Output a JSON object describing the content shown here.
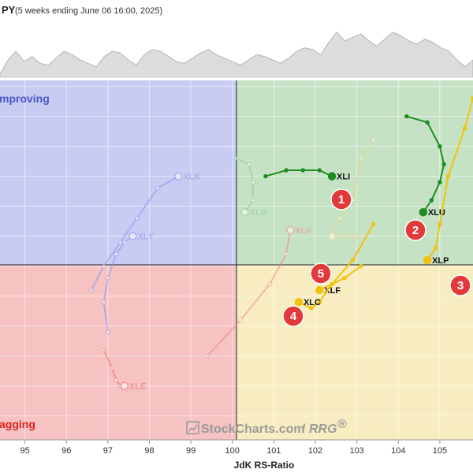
{
  "header": {
    "ticker": "PY",
    "subtitle": "(5 weeks ending June 06 16:00, 2025)"
  },
  "quadrants": {
    "improving": {
      "label": "mproving",
      "fill": "#c8ccf2",
      "text": "#4a55c8"
    },
    "leading": {
      "fill": "#c5e2c5"
    },
    "lagging": {
      "label": "agging",
      "fill": "#f6c2c2",
      "text": "#e02020"
    },
    "weakening": {
      "fill": "#f8edc0"
    }
  },
  "watermark": {
    "brand": "StockCharts.com",
    "product": "RRG",
    "reg": "®"
  },
  "chart_data": {
    "type": "scatter",
    "xlabel": "JdK RS-Ratio",
    "xlim": [
      94.4,
      105.8
    ],
    "ylim": [
      96.6,
      102.6
    ],
    "x_ticks": [
      "95",
      "96",
      "97",
      "98",
      "99",
      "100",
      "101",
      "102",
      "103",
      "104",
      "105"
    ],
    "center": [
      100,
      100
    ],
    "series": [
      {
        "name": "XLK",
        "color": "#8a96ea",
        "faded": true,
        "points": [
          [
            96.6,
            99.1
          ],
          [
            96.9,
            99.5
          ],
          [
            97.3,
            99.9
          ],
          [
            97.7,
            100.3
          ],
          [
            98.2,
            100.8
          ],
          [
            98.7,
            101.0
          ]
        ]
      },
      {
        "name": "XLY",
        "color": "#8a96ea",
        "faded": true,
        "points": [
          [
            97.0,
            98.4
          ],
          [
            96.9,
            98.9
          ],
          [
            97.0,
            99.3
          ],
          [
            97.2,
            99.7
          ],
          [
            97.4,
            99.9
          ],
          [
            97.6,
            100.0
          ]
        ]
      },
      {
        "name": "XLE",
        "color": "#ee6a6a",
        "faded": true,
        "points": [
          [
            96.9,
            98.1
          ],
          [
            97.1,
            97.8
          ],
          [
            97.2,
            97.6
          ],
          [
            97.3,
            97.5
          ],
          [
            97.4,
            97.5
          ]
        ]
      },
      {
        "name": "XLV",
        "color": "#ee8a8a",
        "faded": true,
        "points": [
          [
            99.4,
            98.0
          ],
          [
            100.2,
            98.6
          ],
          [
            100.9,
            99.2
          ],
          [
            101.3,
            99.7
          ],
          [
            101.4,
            100.1
          ]
        ]
      },
      {
        "name": "XLB",
        "color": "#90cc90",
        "faded": true,
        "points": [
          [
            100.1,
            101.3
          ],
          [
            100.4,
            101.2
          ],
          [
            100.5,
            100.9
          ],
          [
            100.5,
            100.6
          ],
          [
            100.3,
            100.4
          ]
        ]
      },
      {
        "name": "XLRE",
        "color": "#e8d28a",
        "faded": true,
        "points": [
          [
            103.4,
            101.6
          ],
          [
            103.1,
            101.3
          ],
          [
            102.9,
            100.6
          ],
          [
            102.6,
            100.3
          ],
          [
            102.4,
            100.0
          ]
        ]
      },
      {
        "name": "XLI",
        "color": "#1f8c1f",
        "faded": false,
        "points": [
          [
            100.8,
            101.0
          ],
          [
            101.3,
            101.1
          ],
          [
            101.7,
            101.1
          ],
          [
            102.1,
            101.1
          ],
          [
            102.4,
            101.0
          ]
        ]
      },
      {
        "name": "XLU",
        "color": "#1f8c1f",
        "faded": false,
        "points": [
          [
            104.2,
            102.0
          ],
          [
            104.7,
            101.9
          ],
          [
            105.0,
            101.5
          ],
          [
            105.1,
            101.2
          ],
          [
            105.0,
            100.9
          ],
          [
            104.8,
            100.6
          ],
          [
            104.6,
            100.4
          ]
        ]
      },
      {
        "name": "XLP",
        "color": "#f2c20c",
        "faded": false,
        "points": [
          [
            105.8,
            102.3
          ],
          [
            105.6,
            101.8
          ],
          [
            105.2,
            101.0
          ],
          [
            105.0,
            100.2
          ],
          [
            104.9,
            99.8
          ],
          [
            104.7,
            99.6
          ]
        ]
      },
      {
        "name": "XLF",
        "color": "#f2c20c",
        "faded": false,
        "points": [
          [
            103.1,
            99.5
          ],
          [
            102.7,
            99.3
          ],
          [
            102.4,
            99.2
          ],
          [
            102.1,
            99.1
          ]
        ]
      },
      {
        "name": "XLC",
        "color": "#f2c20c",
        "faded": false,
        "points": [
          [
            103.4,
            100.2
          ],
          [
            102.9,
            99.6
          ],
          [
            102.4,
            99.2
          ],
          [
            102.1,
            98.9
          ],
          [
            101.9,
            98.8
          ],
          [
            101.6,
            98.9
          ]
        ]
      }
    ],
    "price": [
      42,
      50,
      55,
      49,
      52,
      48,
      47,
      51,
      55,
      53,
      50,
      48,
      46,
      52,
      55,
      54,
      50,
      47,
      53,
      56,
      55,
      52,
      49,
      48,
      51,
      54,
      56,
      53,
      51,
      49,
      47,
      50,
      53,
      52,
      50,
      48,
      51,
      55,
      57,
      56,
      53,
      60,
      66,
      61,
      63,
      65,
      61,
      58,
      62,
      66,
      64,
      61,
      59,
      62,
      60,
      57,
      55,
      50,
      46,
      50
    ]
  },
  "badges": [
    {
      "num": "1",
      "color": "#e23a3a"
    },
    {
      "num": "2",
      "color": "#e23a3a"
    },
    {
      "num": "3",
      "color": "#e23a3a"
    },
    {
      "num": "4",
      "color": "#e23a3a"
    },
    {
      "num": "5",
      "color": "#e23a3a"
    }
  ]
}
